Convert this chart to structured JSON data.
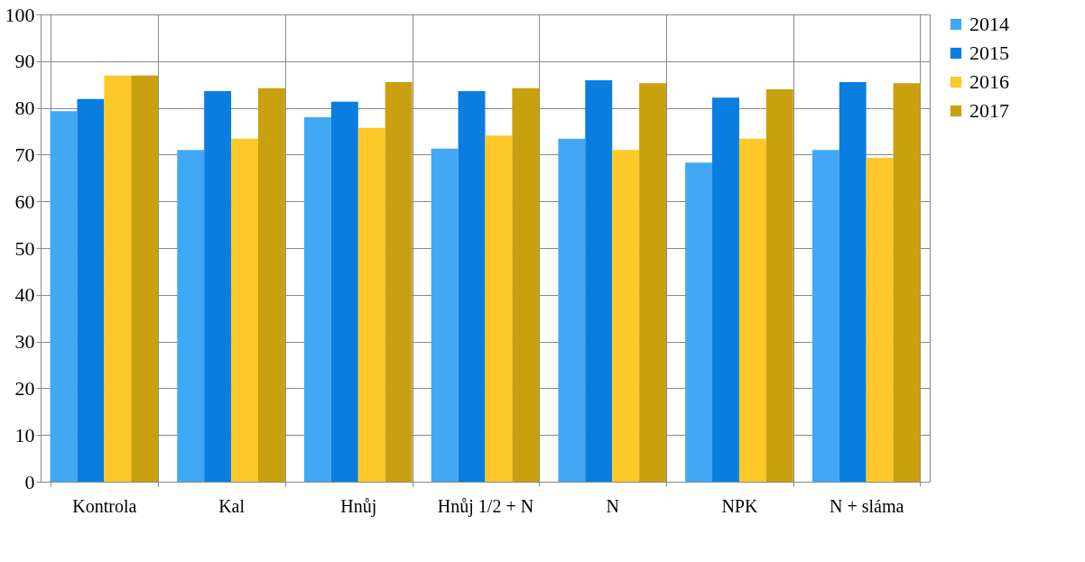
{
  "chart_data": {
    "type": "bar",
    "categories": [
      "Kontrola",
      "Kal",
      "Hnůj",
      "Hnůj 1/2 + N",
      "N",
      "NPK",
      "N + sláma"
    ],
    "series": [
      {
        "name": "2014",
        "color": "#41a8f5",
        "values": [
          79.3,
          71.0,
          78.0,
          71.3,
          73.4,
          68.3,
          71.0
        ]
      },
      {
        "name": "2015",
        "color": "#0a7de0",
        "values": [
          81.9,
          83.6,
          81.3,
          83.6,
          85.9,
          82.2,
          85.5
        ]
      },
      {
        "name": "2016",
        "color": "#fdc828",
        "values": [
          86.9,
          73.4,
          75.7,
          74.1,
          71.0,
          73.4,
          69.3
        ]
      },
      {
        "name": "2017",
        "color": "#c9a00e",
        "values": [
          86.9,
          84.2,
          85.5,
          84.2,
          85.3,
          84.0,
          85.3
        ]
      }
    ],
    "ylim": [
      0,
      100
    ],
    "yticks": [
      0,
      10,
      20,
      30,
      40,
      50,
      60,
      70,
      80,
      90,
      100
    ],
    "grid": true,
    "legend": "right"
  }
}
